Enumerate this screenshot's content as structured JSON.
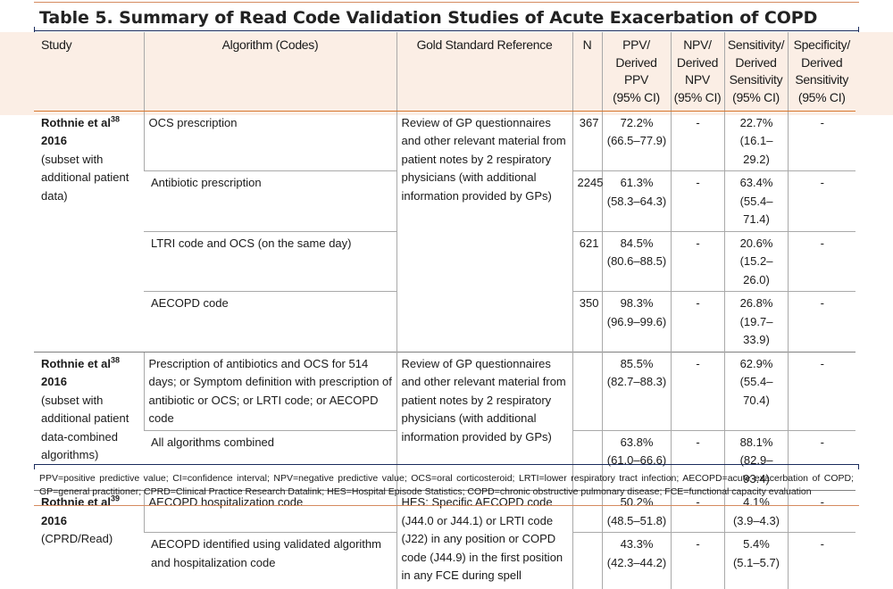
{
  "title": "Table 5. Summary of Read Code Validation Studies of Acute Exacerbation of COPD",
  "headers": {
    "study": "Study",
    "algorithm": "Algorithm (Codes)",
    "gold": "Gold Standard Reference",
    "n": "N",
    "ppv": [
      "PPV/",
      "Derived",
      "PPV",
      "(95% CI)"
    ],
    "npv": [
      "NPV/",
      "Derived",
      "NPV",
      "(95% CI)"
    ],
    "sensitivity": [
      "Sensitivity/",
      "Derived",
      "Sensitivity",
      "(95% CI)"
    ],
    "specificity": [
      "Specificity/",
      "Derived",
      "Sensitivity",
      "(95% CI)"
    ]
  },
  "groups": [
    {
      "study_name": "Rothnie et al",
      "study_ref": "38",
      "study_year": "2016",
      "study_note": "(subset with additional patient data)",
      "gold": "Review of GP questionnaires and other relevant material from patient notes by 2 respiratory physicians (with additional information provided by GPs)",
      "rows": [
        {
          "algorithm": "OCS prescription",
          "n": "367",
          "ppv": "72.2%",
          "ppv_ci": "(66.5–77.9)",
          "npv": "-",
          "sens": "22.7%",
          "sens_ci": "(16.1–29.2)",
          "spec": "-"
        },
        {
          "algorithm": "Antibiotic prescription",
          "n": "2245",
          "ppv": "61.3%",
          "ppv_ci": "(58.3–64.3)",
          "npv": "-",
          "sens": "63.4%",
          "sens_ci": "(55.4–71.4)",
          "spec": "-"
        },
        {
          "algorithm": "LTRI code and OCS (on the same day)",
          "n": "621",
          "ppv": "84.5%",
          "ppv_ci": "(80.6–88.5)",
          "npv": "-",
          "sens": "20.6%",
          "sens_ci": "(15.2–26.0)",
          "spec": "-"
        },
        {
          "algorithm": "AECOPD code",
          "n": "350",
          "ppv": "98.3%",
          "ppv_ci": "(96.9–99.6)",
          "npv": "-",
          "sens": "26.8%",
          "sens_ci": "(19.7–33.9)",
          "spec": "-"
        }
      ]
    },
    {
      "study_name": "Rothnie et al",
      "study_ref": "38",
      "study_year": "2016",
      "study_note": "(subset with additional patient data-combined algorithms)",
      "gold": "Review of GP questionnaires and other relevant material from patient notes by 2 respiratory physicians (with additional information provided by GPs)",
      "rows": [
        {
          "algorithm": "Prescription of antibiotics and OCS for 5\u001a14 days; or Symptom definition with prescription of antibiotic or OCS; or LRTI code; or AECOPD code",
          "n": "",
          "ppv": "85.5%",
          "ppv_ci": "(82.7–88.3)",
          "npv": "-",
          "sens": "62.9%",
          "sens_ci": "(55.4–70.4)",
          "spec": "-"
        },
        {
          "algorithm": "All algorithms combined",
          "n": "",
          "ppv": "63.8%",
          "ppv_ci": "(61.0–66.6)",
          "npv": "-",
          "sens": "88.1%",
          "sens_ci": "(82.9–93.4)",
          "spec": "-"
        }
      ]
    },
    {
      "study_name": "Rothnie et al",
      "study_ref": "39",
      "study_year": "2016",
      "study_note": "(CPRD/Read)",
      "gold": "HES: Specific AECOPD code (J44.0 or J44.1) or LRTI code (J22) in any position or COPD code (J44.9) in the first position in any FCE during spell",
      "rows": [
        {
          "algorithm": "AECOPD hospitalization code",
          "n": "",
          "ppv": "50.2%",
          "ppv_ci": "(48.5–51.8)",
          "npv": "-",
          "sens": "4.1%",
          "sens_ci": "(3.9–4.3)",
          "spec": "-"
        },
        {
          "algorithm": "AECOPD identified using validated algorithm and hospitalization code",
          "n": "",
          "ppv": "43.3%",
          "ppv_ci": "(42.3–44.2)",
          "npv": "-",
          "sens": "5.4%",
          "sens_ci": "(5.1–5.7)",
          "spec": "-"
        }
      ]
    }
  ],
  "footnote": "PPV=positive predictive value; CI=confidence interval; NPV=negative predictive value; OCS=oral corticosteroid; LRTI=lower respiratory tract infection; AECOPD=acute exacerbation of COPD; GP=general practitioner; CPRD=Clinical Practice Research Datalink; HES=Hospital Episode Statistics; COPD=chronic obstructive pulmonary disease; FCE=functional capacity evaluation"
}
